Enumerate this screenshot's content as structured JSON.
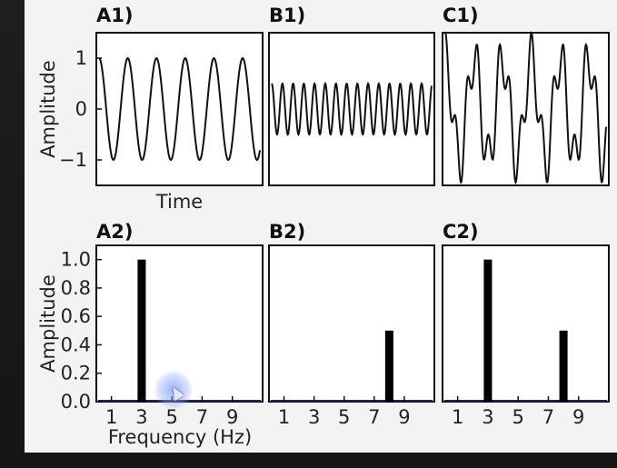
{
  "chart_data": [
    {
      "panel": "A1)",
      "type": "line",
      "xlabel": "Time",
      "ylabel": "Amplitude",
      "ylim": [
        -1.5,
        1.5
      ],
      "yticks": [
        1,
        0,
        -1
      ],
      "yticklabels": [
        "1",
        "0",
        "−1"
      ],
      "series": [
        {
          "components": [
            {
              "freq_hz": 3,
              "amplitude": 1.0
            }
          ]
        }
      ]
    },
    {
      "panel": "B1)",
      "type": "line",
      "ylim": [
        -1.5,
        1.5
      ],
      "series": [
        {
          "components": [
            {
              "freq_hz": 8,
              "amplitude": 0.5
            }
          ]
        }
      ]
    },
    {
      "panel": "C1)",
      "type": "line",
      "ylim": [
        -1.5,
        1.5
      ],
      "series": [
        {
          "components": [
            {
              "freq_hz": 3,
              "amplitude": 1.0
            },
            {
              "freq_hz": 8,
              "amplitude": 0.5
            }
          ]
        }
      ]
    },
    {
      "panel": "A2)",
      "type": "bar",
      "xlabel": "Frequency (Hz)",
      "ylabel": "Amplitude",
      "xlim": [
        0,
        11
      ],
      "ylim": [
        0,
        1.1
      ],
      "xticklabels": [
        "1",
        "3",
        "5",
        "7",
        "9"
      ],
      "xticks": [
        1,
        3,
        5,
        7,
        9
      ],
      "yticks": [
        0,
        0.2,
        0.4,
        0.6,
        0.8,
        1.0
      ],
      "yticklabels": [
        "0.0",
        "0.2",
        "0.4",
        "0.6",
        "0.8",
        "1.0"
      ],
      "bars": [
        {
          "x": 3,
          "value": 1.0
        }
      ]
    },
    {
      "panel": "B2)",
      "type": "bar",
      "xlim": [
        0,
        11
      ],
      "ylim": [
        0,
        1.1
      ],
      "xticklabels": [
        "1",
        "3",
        "5",
        "7",
        "9"
      ],
      "xticks": [
        1,
        3,
        5,
        7,
        9
      ],
      "bars": [
        {
          "x": 8,
          "value": 0.5
        }
      ]
    },
    {
      "panel": "C2)",
      "type": "bar",
      "xlim": [
        0,
        11
      ],
      "ylim": [
        0,
        1.1
      ],
      "xticklabels": [
        "1",
        "3",
        "5",
        "7",
        "9"
      ],
      "xticks": [
        1,
        3,
        5,
        7,
        9
      ],
      "bars": [
        {
          "x": 3,
          "value": 1.0
        },
        {
          "x": 8,
          "value": 0.5
        }
      ]
    }
  ]
}
